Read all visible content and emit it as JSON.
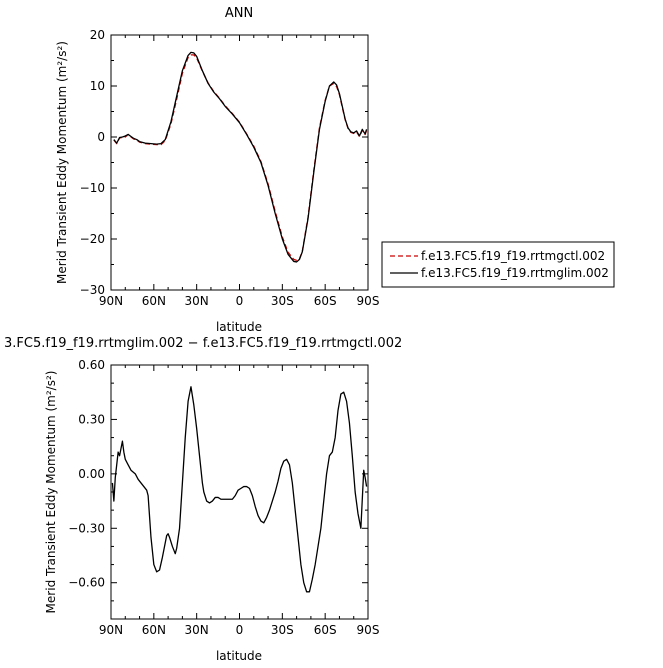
{
  "chart_data": [
    {
      "type": "line",
      "title": "ANN",
      "xlabel": "latitude",
      "ylabel": "Merid Transient Eddy Momentum",
      "ylabel_unit": "(m²/s²)",
      "xlim": [
        90,
        -90
      ],
      "ylim": [
        -30,
        20
      ],
      "xticks": [
        90,
        60,
        30,
        0,
        -30,
        -60,
        -90
      ],
      "xtick_labels": [
        "90N",
        "60N",
        "30N",
        "0",
        "30S",
        "60S",
        "90S"
      ],
      "yticks": [
        20,
        10,
        0,
        -10,
        -20,
        -30
      ],
      "ytick_labels": [
        "20",
        "10",
        "0",
        "−10",
        "−20",
        "−30"
      ],
      "legend_position": "right",
      "series": [
        {
          "name": "f.e13.FC5.f19_f19.rrtmglim.002",
          "color": "#000000",
          "dash": "solid",
          "x": [
            88,
            86,
            84,
            82,
            80,
            78,
            76,
            74,
            72,
            70,
            66,
            62,
            58,
            55,
            52,
            48,
            44,
            40,
            36,
            34,
            32,
            30,
            26,
            22,
            18,
            14,
            10,
            5,
            0,
            -5,
            -10,
            -15,
            -20,
            -25,
            -30,
            -34,
            -38,
            -40,
            -42,
            -44,
            -48,
            -52,
            -56,
            -60,
            -63,
            -66,
            -68,
            -70,
            -72,
            -74,
            -76,
            -78,
            -80,
            -82,
            -84,
            -86,
            -87,
            -88,
            -89
          ],
          "y": [
            -0.5,
            -1.2,
            -0.1,
            0.0,
            0.2,
            0.5,
            0.1,
            -0.3,
            -0.5,
            -0.9,
            -1.2,
            -1.3,
            -1.4,
            -1.3,
            -0.5,
            3.0,
            8.0,
            13.0,
            16.0,
            16.6,
            16.5,
            15.8,
            13.0,
            10.5,
            8.8,
            7.5,
            6.0,
            4.5,
            2.8,
            0.5,
            -2.0,
            -5.0,
            -9.5,
            -15.0,
            -20.0,
            -23.0,
            -24.4,
            -24.5,
            -24.0,
            -22.5,
            -16.0,
            -7.0,
            1.5,
            7.0,
            10.0,
            10.8,
            10.2,
            8.5,
            6.0,
            3.5,
            1.8,
            1.0,
            0.8,
            1.2,
            0.2,
            1.5,
            1.0,
            0.6,
            1.5
          ]
        },
        {
          "name": "f.e13.FC5.f19_f19.rrtmgctl.002",
          "color": "#cc0000",
          "dash": "5,3",
          "x": [
            88,
            86,
            84,
            82,
            80,
            78,
            76,
            74,
            72,
            70,
            66,
            62,
            58,
            55,
            52,
            48,
            44,
            40,
            36,
            34,
            32,
            30,
            26,
            22,
            18,
            14,
            10,
            5,
            0,
            -5,
            -10,
            -15,
            -20,
            -25,
            -30,
            -34,
            -38,
            -40,
            -42,
            -44,
            -48,
            -52,
            -56,
            -60,
            -63,
            -66,
            -68,
            -70,
            -72,
            -74,
            -76,
            -78,
            -80,
            -82,
            -84,
            -86,
            -87,
            -88,
            -89
          ],
          "y": [
            -0.6,
            -1.3,
            -0.2,
            -0.1,
            0.0,
            0.5,
            0.0,
            -0.4,
            -0.6,
            -1.0,
            -1.3,
            -1.4,
            -1.5,
            -1.5,
            -0.7,
            2.6,
            7.4,
            12.5,
            15.6,
            16.1,
            16.1,
            15.5,
            12.9,
            10.6,
            8.9,
            7.6,
            6.1,
            4.6,
            2.9,
            0.6,
            -1.8,
            -4.8,
            -9.2,
            -14.6,
            -19.6,
            -22.6,
            -24.0,
            -24.2,
            -23.9,
            -22.4,
            -15.7,
            -6.6,
            1.8,
            7.2,
            10.0,
            10.5,
            9.9,
            8.3,
            5.8,
            3.4,
            1.7,
            0.9,
            0.7,
            1.0,
            0.1,
            1.3,
            0.9,
            0.5,
            1.3
          ]
        }
      ]
    },
    {
      "type": "line",
      "title": "3.FC5.f19_f19.rrtmglim.002 − f.e13.FC5.f19_f19.rrtmgctl.002",
      "xlabel": "latitude",
      "ylabel": "Merid Transient Eddy Momentum",
      "ylabel_unit": "(m²/s²)",
      "xlim": [
        90,
        -90
      ],
      "ylim": [
        -0.8,
        0.6
      ],
      "xticks": [
        90,
        60,
        30,
        0,
        -30,
        -60,
        -90
      ],
      "xtick_labels": [
        "90N",
        "60N",
        "30N",
        "0",
        "30S",
        "60S",
        "90S"
      ],
      "yticks": [
        0.6,
        0.3,
        0.0,
        -0.3,
        -0.6
      ],
      "ytick_labels": [
        "0.60",
        "0.30",
        "0.00",
        "−0.30",
        "−0.60"
      ],
      "series": [
        {
          "name": "",
          "color": "#000000",
          "dash": "solid",
          "x": [
            89,
            88,
            87,
            86,
            85,
            84,
            83,
            82,
            81,
            80,
            78,
            76,
            73,
            71,
            69,
            67,
            65,
            64,
            62,
            60,
            58,
            56,
            54,
            52,
            51,
            50,
            49,
            47,
            45,
            44,
            42,
            40,
            38,
            36,
            34,
            32,
            30,
            28,
            26,
            25,
            23,
            21,
            19,
            17,
            15,
            13,
            11,
            9,
            7,
            5,
            3,
            1,
            -1,
            -3,
            -5,
            -7,
            -9,
            -11,
            -13,
            -15,
            -17,
            -19,
            -21,
            -23,
            -25,
            -27,
            -29,
            -31,
            -33,
            -35,
            -37,
            -39,
            -41,
            -43,
            -45,
            -47,
            -49,
            -51,
            -53,
            -55,
            -57,
            -59,
            -61,
            -63,
            -65,
            -67,
            -69,
            -71,
            -73,
            -75,
            -77,
            -79,
            -81,
            -83,
            -85,
            -87,
            -88,
            -89
          ],
          "y": [
            -0.05,
            -0.15,
            -0.02,
            0.05,
            0.12,
            0.1,
            0.14,
            0.18,
            0.12,
            0.08,
            0.05,
            0.02,
            0.0,
            -0.03,
            -0.05,
            -0.07,
            -0.09,
            -0.12,
            -0.35,
            -0.5,
            -0.54,
            -0.53,
            -0.46,
            -0.38,
            -0.34,
            -0.33,
            -0.35,
            -0.4,
            -0.44,
            -0.41,
            -0.3,
            -0.05,
            0.2,
            0.4,
            0.48,
            0.38,
            0.25,
            0.1,
            -0.05,
            -0.1,
            -0.15,
            -0.16,
            -0.15,
            -0.13,
            -0.13,
            -0.14,
            -0.14,
            -0.14,
            -0.14,
            -0.14,
            -0.12,
            -0.09,
            -0.08,
            -0.07,
            -0.07,
            -0.08,
            -0.12,
            -0.18,
            -0.23,
            -0.26,
            -0.27,
            -0.24,
            -0.2,
            -0.15,
            -0.1,
            -0.04,
            0.03,
            0.07,
            0.08,
            0.05,
            -0.05,
            -0.2,
            -0.35,
            -0.5,
            -0.6,
            -0.65,
            -0.65,
            -0.58,
            -0.5,
            -0.4,
            -0.3,
            -0.15,
            0.0,
            0.1,
            0.12,
            0.2,
            0.35,
            0.44,
            0.45,
            0.4,
            0.28,
            0.1,
            -0.1,
            -0.22,
            -0.3,
            0.02,
            -0.02,
            -0.07
          ]
        }
      ]
    }
  ]
}
